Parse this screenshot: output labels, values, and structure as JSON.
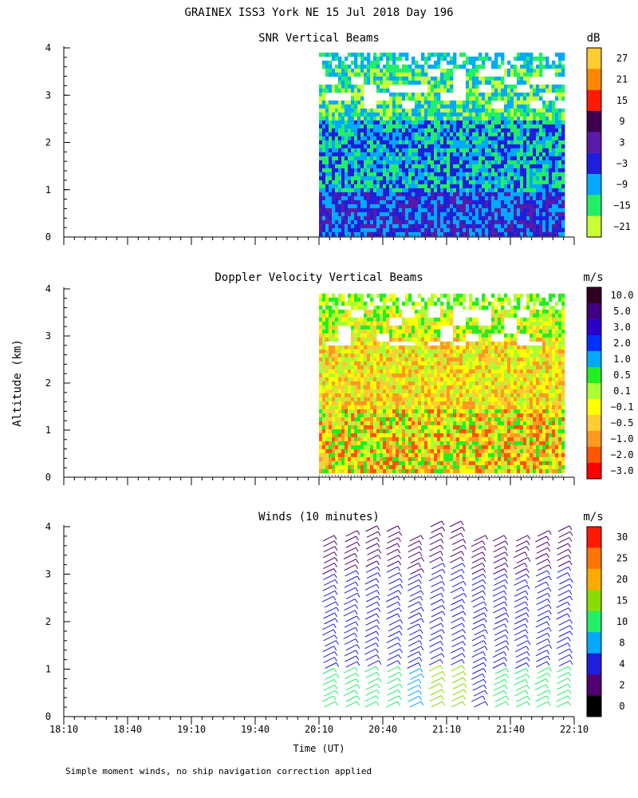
{
  "title": "GRAINEX ISS3 York NE  15 Jul 2018 Day 196",
  "footnote": "Simple moment winds, no ship navigation correction applied",
  "y_axis_label": "Altitude (km)",
  "x_axis_label": "Time (UT)",
  "chart_data": [
    {
      "type": "heatmap",
      "title": "SNR Vertical Beams",
      "ylabel": "Altitude (km)",
      "xlabel": "Time (UT)",
      "x_ticks": [
        "18:10",
        "18:40",
        "19:10",
        "19:40",
        "20:10",
        "20:40",
        "21:10",
        "21:40",
        "22:10"
      ],
      "y_ticks": [
        "0",
        "1",
        "2",
        "3",
        "4"
      ],
      "ylim": [
        0,
        4
      ],
      "xlim": [
        "18:10",
        "22:10"
      ],
      "data_x_range": [
        "20:10",
        "22:05"
      ],
      "data_y_range": [
        0.1,
        3.9
      ],
      "colorbar": {
        "unit": "dB",
        "labels": [
          "27",
          "21",
          "15",
          "9",
          "3",
          "−3",
          "−9",
          "−15",
          "−21"
        ],
        "colors": [
          "#ffcc33",
          "#ff8800",
          "#ff1a00",
          "#400050",
          "#5a1aa8",
          "#1e1edc",
          "#00aaff",
          "#22ee66",
          "#c8ff33"
        ]
      },
      "dominant_ranges": [
        {
          "altitude_km": [
            0.1,
            1.0
          ],
          "snr_db": [
            -3,
            9
          ]
        },
        {
          "altitude_km": [
            1.0,
            2.5
          ],
          "snr_db": [
            -15,
            -3
          ]
        },
        {
          "altitude_km": [
            2.5,
            3.9
          ],
          "snr_db": [
            -21,
            -9
          ]
        }
      ]
    },
    {
      "type": "heatmap",
      "title": "Doppler Velocity Vertical Beams",
      "ylabel": "Altitude (km)",
      "xlabel": "Time (UT)",
      "x_ticks": [
        "18:10",
        "18:40",
        "19:10",
        "19:40",
        "20:10",
        "20:40",
        "21:10",
        "21:40",
        "22:10"
      ],
      "y_ticks": [
        "0",
        "1",
        "2",
        "3",
        "4"
      ],
      "ylim": [
        0,
        4
      ],
      "xlim": [
        "18:10",
        "22:10"
      ],
      "data_x_range": [
        "20:10",
        "22:05"
      ],
      "data_y_range": [
        0.1,
        3.9
      ],
      "colorbar": {
        "unit": "m/s",
        "labels": [
          "10.0",
          "5.0",
          "3.0",
          "2.0",
          "1.0",
          "0.5",
          "0.1",
          "−0.1",
          "−0.5",
          "−1.0",
          "−2.0",
          "−3.0"
        ],
        "colors": [
          "#300020",
          "#400080",
          "#2a00c8",
          "#0030ff",
          "#00aaff",
          "#22ee22",
          "#aaff33",
          "#ffff00",
          "#ffcc33",
          "#ff9922",
          "#ff5500",
          "#ff0000"
        ]
      },
      "dominant_ranges": [
        {
          "altitude_km": [
            0.1,
            1.5
          ],
          "velocity_ms": [
            -1.0,
            0.5
          ]
        },
        {
          "altitude_km": [
            1.5,
            3.0
          ],
          "velocity_ms": [
            -0.5,
            0.1
          ]
        },
        {
          "altitude_km": [
            3.0,
            3.9
          ],
          "velocity_ms": [
            -0.5,
            0.5
          ]
        }
      ]
    },
    {
      "type": "scatter",
      "subtype": "wind_barbs",
      "title": "Winds (10 minutes)",
      "ylabel": "Altitude (km)",
      "xlabel": "Time (UT)",
      "x_ticks": [
        "18:10",
        "18:40",
        "19:10",
        "19:40",
        "20:10",
        "20:40",
        "21:10",
        "21:40",
        "22:10"
      ],
      "y_ticks": [
        "0",
        "1",
        "2",
        "3",
        "4"
      ],
      "ylim": [
        0,
        4
      ],
      "xlim": [
        "18:10",
        "22:10"
      ],
      "colorbar": {
        "unit": "m/s",
        "labels": [
          "30",
          "25",
          "20",
          "15",
          "10",
          "8",
          "4",
          "2",
          "0"
        ],
        "colors": [
          "#ff1a00",
          "#ff7700",
          "#ffaa00",
          "#88dd00",
          "#22ee66",
          "#00aaff",
          "#1e1edc",
          "#500070",
          "#000000"
        ]
      },
      "profile_times": [
        "20:10",
        "20:20",
        "20:30",
        "20:40",
        "20:50",
        "21:00",
        "21:10",
        "21:20",
        "21:30",
        "21:40",
        "21:50",
        "22:00"
      ],
      "profiles": [
        {
          "time": "20:10",
          "top_km": 3.7,
          "bottom_km": 0.2,
          "speeds_ms": [
            12,
            6,
            5,
            4,
            3
          ]
        },
        {
          "time": "20:20",
          "top_km": 3.8,
          "bottom_km": 0.2,
          "speeds_ms": [
            12,
            7,
            5,
            4,
            3
          ]
        },
        {
          "time": "20:30",
          "top_km": 3.9,
          "bottom_km": 0.2,
          "speeds_ms": [
            12,
            7,
            5,
            4,
            3
          ]
        },
        {
          "time": "20:40",
          "top_km": 3.9,
          "bottom_km": 0.2,
          "speeds_ms": [
            10,
            6,
            5,
            4,
            3
          ]
        },
        {
          "time": "20:50",
          "top_km": 3.7,
          "bottom_km": 0.2,
          "speeds_ms": [
            8,
            6,
            5,
            4,
            3
          ]
        },
        {
          "time": "21:00",
          "top_km": 4.0,
          "bottom_km": 0.2,
          "speeds_ms": [
            15,
            6,
            5,
            4,
            3
          ]
        },
        {
          "time": "21:10",
          "top_km": 4.0,
          "bottom_km": 0.2,
          "speeds_ms": [
            15,
            6,
            5,
            4,
            3
          ]
        },
        {
          "time": "21:20",
          "top_km": 3.7,
          "bottom_km": 0.2,
          "speeds_ms": [
            6,
            6,
            5,
            4,
            3
          ]
        },
        {
          "time": "21:30",
          "top_km": 3.7,
          "bottom_km": 0.2,
          "speeds_ms": [
            12,
            6,
            5,
            4,
            3
          ]
        },
        {
          "time": "21:40",
          "top_km": 3.7,
          "bottom_km": 0.2,
          "speeds_ms": [
            12,
            6,
            5,
            4,
            3
          ]
        },
        {
          "time": "21:50",
          "top_km": 3.8,
          "bottom_km": 0.2,
          "speeds_ms": [
            10,
            6,
            5,
            4,
            3
          ]
        },
        {
          "time": "22:00",
          "top_km": 3.9,
          "bottom_km": 0.2,
          "speeds_ms": [
            10,
            6,
            5,
            4,
            3
          ]
        }
      ]
    }
  ]
}
